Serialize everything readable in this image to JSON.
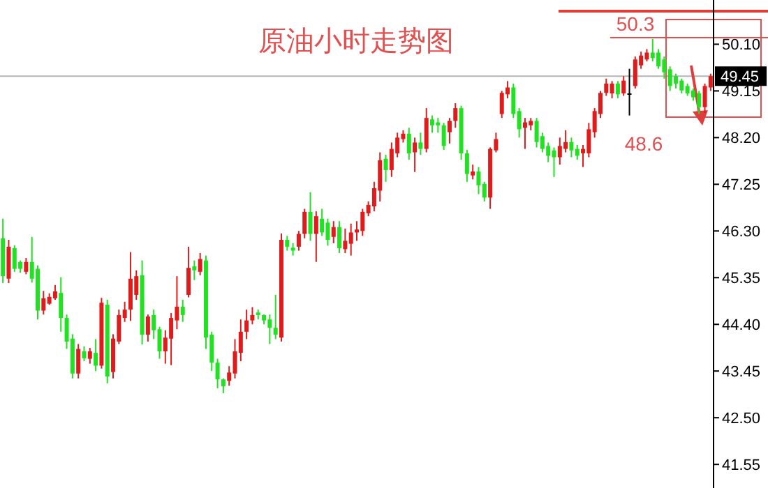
{
  "chart_data": {
    "type": "candlestick",
    "title": "原油小时走势图",
    "categories": [
      null,
      null,
      null,
      null,
      null,
      null,
      null,
      null,
      null,
      null,
      null,
      null,
      null,
      null,
      null,
      null,
      null,
      null,
      null,
      null,
      null,
      null,
      null,
      null,
      null,
      null,
      null,
      null,
      null,
      null,
      null,
      null,
      null,
      null,
      null,
      null,
      null,
      null,
      null,
      null,
      null,
      null,
      null,
      null,
      null,
      null,
      null,
      null,
      null,
      null,
      null,
      null,
      null,
      null,
      null,
      null,
      null,
      null,
      null,
      null,
      null,
      null,
      null,
      null,
      null,
      null,
      null,
      null,
      null,
      null,
      null,
      null,
      null,
      null,
      null,
      null,
      null,
      null,
      null,
      null,
      null,
      null,
      null,
      null,
      null,
      null,
      null,
      null,
      null,
      null,
      null,
      null,
      null,
      null,
      null,
      null,
      null,
      null,
      null,
      null,
      null,
      null,
      null,
      null,
      null,
      null,
      null,
      null,
      null,
      null,
      null,
      null,
      null,
      null,
      null,
      null,
      null,
      null,
      null,
      null,
      null,
      null,
      null
    ],
    "ohlc": [
      [
        46.15,
        46.55,
        45.24,
        45.38
      ],
      [
        45.33,
        46.12,
        45.24,
        45.98
      ],
      [
        45.95,
        46.01,
        45.47,
        45.53
      ],
      [
        45.67,
        45.7,
        45.45,
        45.53
      ],
      [
        45.47,
        45.75,
        45.42,
        45.67
      ],
      [
        45.67,
        46.18,
        45.25,
        45.33
      ],
      [
        45.53,
        45.6,
        44.5,
        44.68
      ],
      [
        44.68,
        45.08,
        44.6,
        44.93
      ],
      [
        44.82,
        45.03,
        44.8,
        44.96
      ],
      [
        44.93,
        45.2,
        44.9,
        45.07
      ],
      [
        45.04,
        45.36,
        44.25,
        44.53
      ],
      [
        44.53,
        44.6,
        43.9,
        44.05
      ],
      [
        44.11,
        44.2,
        43.3,
        43.4
      ],
      [
        43.4,
        44.0,
        43.3,
        43.9
      ],
      [
        43.85,
        43.95,
        43.65,
        43.71
      ],
      [
        43.7,
        43.92,
        43.6,
        43.85
      ],
      [
        43.82,
        44.1,
        43.45,
        43.56
      ],
      [
        43.56,
        44.94,
        43.5,
        44.84
      ],
      [
        44.8,
        44.9,
        43.2,
        43.34
      ],
      [
        43.43,
        44.2,
        43.3,
        44.11
      ],
      [
        44.05,
        44.7,
        44.0,
        44.59
      ],
      [
        44.53,
        44.86,
        44.45,
        44.7
      ],
      [
        44.7,
        45.87,
        44.47,
        45.33
      ],
      [
        45.0,
        45.5,
        44.9,
        45.38
      ],
      [
        45.4,
        45.7,
        43.99,
        44.19
      ],
      [
        44.19,
        44.6,
        44.05,
        44.56
      ],
      [
        44.59,
        44.7,
        44.1,
        44.28
      ],
      [
        44.3,
        44.35,
        43.7,
        43.85
      ],
      [
        43.85,
        44.28,
        43.6,
        44.13
      ],
      [
        44.11,
        44.63,
        43.57,
        44.53
      ],
      [
        44.48,
        45.38,
        44.3,
        44.76
      ],
      [
        44.76,
        44.9,
        44.45,
        44.59
      ],
      [
        45.0,
        45.98,
        44.95,
        45.55
      ],
      [
        45.58,
        45.7,
        45.3,
        45.5
      ],
      [
        45.47,
        45.85,
        45.4,
        45.73
      ],
      [
        45.7,
        45.8,
        43.9,
        44.13
      ],
      [
        44.19,
        44.25,
        43.45,
        43.62
      ],
      [
        43.62,
        43.7,
        43.1,
        43.28
      ],
      [
        43.28,
        43.3,
        43.0,
        43.14
      ],
      [
        43.25,
        43.55,
        43.15,
        43.42
      ],
      [
        43.4,
        44.1,
        43.3,
        43.85
      ],
      [
        43.82,
        44.5,
        43.65,
        44.25
      ],
      [
        44.25,
        44.7,
        44.1,
        44.48
      ],
      [
        44.48,
        44.75,
        44.4,
        44.59
      ],
      [
        44.64,
        44.7,
        44.5,
        44.59
      ],
      [
        44.59,
        44.6,
        44.4,
        44.48
      ],
      [
        44.5,
        44.6,
        44.0,
        44.33
      ],
      [
        44.33,
        45.0,
        44.1,
        44.19
      ],
      [
        44.13,
        46.25,
        44.05,
        46.12
      ],
      [
        46.12,
        46.2,
        45.9,
        45.98
      ],
      [
        45.96,
        46.05,
        45.8,
        45.9
      ],
      [
        45.98,
        46.3,
        45.9,
        46.24
      ],
      [
        46.24,
        46.75,
        46.15,
        46.69
      ],
      [
        46.69,
        47.09,
        46.1,
        46.24
      ],
      [
        46.24,
        46.7,
        45.67,
        46.6
      ],
      [
        46.55,
        46.75,
        46.2,
        46.27
      ],
      [
        46.47,
        46.55,
        46.0,
        46.12
      ],
      [
        46.18,
        46.5,
        46.05,
        46.38
      ],
      [
        46.38,
        46.5,
        45.85,
        45.95
      ],
      [
        45.93,
        46.35,
        45.85,
        46.1
      ],
      [
        46.04,
        46.45,
        45.8,
        46.27
      ],
      [
        46.27,
        46.5,
        46.1,
        46.33
      ],
      [
        46.3,
        46.75,
        46.2,
        46.69
      ],
      [
        46.66,
        46.9,
        46.6,
        46.83
      ],
      [
        46.8,
        47.3,
        46.7,
        47.17
      ],
      [
        47.12,
        47.9,
        46.9,
        47.74
      ],
      [
        47.77,
        47.85,
        47.3,
        47.54
      ],
      [
        47.54,
        48.1,
        47.4,
        47.97
      ],
      [
        47.88,
        48.3,
        47.8,
        48.2
      ],
      [
        48.17,
        48.35,
        48.1,
        48.28
      ],
      [
        48.28,
        48.4,
        47.75,
        47.88
      ],
      [
        47.9,
        48.2,
        47.5,
        48.1
      ],
      [
        48.1,
        48.3,
        47.85,
        47.97
      ],
      [
        47.97,
        48.8,
        47.9,
        48.6
      ],
      [
        48.57,
        48.65,
        48.3,
        48.45
      ],
      [
        48.51,
        48.6,
        48.3,
        48.45
      ],
      [
        48.45,
        48.5,
        47.95,
        48.03
      ],
      [
        48.31,
        48.6,
        48.08,
        48.54
      ],
      [
        48.54,
        48.9,
        48.4,
        48.8
      ],
      [
        48.8,
        48.85,
        47.75,
        47.88
      ],
      [
        47.88,
        47.95,
        47.3,
        47.46
      ],
      [
        47.43,
        47.65,
        47.35,
        47.51
      ],
      [
        47.51,
        47.6,
        47.05,
        47.23
      ],
      [
        47.26,
        47.3,
        46.9,
        46.98
      ],
      [
        46.98,
        48.0,
        46.75,
        47.97
      ],
      [
        47.94,
        48.3,
        47.9,
        48.17
      ],
      [
        48.68,
        49.15,
        48.6,
        49.11
      ],
      [
        49.08,
        49.35,
        49.0,
        49.22
      ],
      [
        49.22,
        49.3,
        48.6,
        48.68
      ],
      [
        48.74,
        48.8,
        48.2,
        48.37
      ],
      [
        48.4,
        48.6,
        47.97,
        48.51
      ],
      [
        48.45,
        48.6,
        48.35,
        48.54
      ],
      [
        48.54,
        48.6,
        48.0,
        48.11
      ],
      [
        48.23,
        48.3,
        47.9,
        47.97
      ],
      [
        48.03,
        48.1,
        47.7,
        47.83
      ],
      [
        47.94,
        48.0,
        47.4,
        47.8
      ],
      [
        47.8,
        48.2,
        47.65,
        48.03
      ],
      [
        47.97,
        48.35,
        47.9,
        48.11
      ],
      [
        48.11,
        48.2,
        47.8,
        47.94
      ],
      [
        47.97,
        48.05,
        47.75,
        47.83
      ],
      [
        47.88,
        48.05,
        47.6,
        47.97
      ],
      [
        47.88,
        48.5,
        47.8,
        48.37
      ],
      [
        48.31,
        48.8,
        48.2,
        48.74
      ],
      [
        48.68,
        49.15,
        48.6,
        49.11
      ],
      [
        49.11,
        49.4,
        49.05,
        49.3
      ],
      [
        49.1,
        49.35,
        49.0,
        49.3
      ],
      [
        49.3,
        49.35,
        49.0,
        49.08
      ],
      [
        49.1,
        49.45,
        49.05,
        49.36
      ],
      [
        49.1,
        49.6,
        48.65,
        49.1
      ],
      [
        49.25,
        49.85,
        49.2,
        49.79
      ],
      [
        49.67,
        49.95,
        49.6,
        49.87
      ],
      [
        49.79,
        50.0,
        49.75,
        49.93
      ],
      [
        49.93,
        50.21,
        49.75,
        49.82
      ],
      [
        49.93,
        50.0,
        49.6,
        49.65
      ],
      [
        49.79,
        49.85,
        49.4,
        49.53
      ],
      [
        49.59,
        49.65,
        49.15,
        49.25
      ],
      [
        49.45,
        49.5,
        49.2,
        49.3
      ],
      [
        49.36,
        49.4,
        49.1,
        49.16
      ],
      [
        49.25,
        49.3,
        49.05,
        49.1
      ],
      [
        49.16,
        49.2,
        48.95,
        49.02
      ],
      [
        49.1,
        49.15,
        48.68,
        48.82
      ],
      [
        48.82,
        49.3,
        48.7,
        49.25
      ],
      [
        49.22,
        49.5,
        49.15,
        49.45
      ]
    ],
    "colors": [
      "#22e022",
      "#e01b1b",
      "#22e022",
      "#22e022",
      "#e01b1b",
      "#22e022",
      "#22e022",
      "#e01b1b",
      "#e01b1b",
      "#e01b1b",
      "#22e022",
      "#22e022",
      "#22e022",
      "#e01b1b",
      "#22e022",
      "#e01b1b",
      "#22e022",
      "#e01b1b",
      "#22e022",
      "#e01b1b",
      "#e01b1b",
      "#e01b1b",
      "#e01b1b",
      "#e01b1b",
      "#22e022",
      "#e01b1b",
      "#22e022",
      "#22e022",
      "#e01b1b",
      "#e01b1b",
      "#e01b1b",
      "#22e022",
      "#e01b1b",
      "#22e022",
      "#e01b1b",
      "#22e022",
      "#22e022",
      "#22e022",
      "#22e022",
      "#e01b1b",
      "#e01b1b",
      "#e01b1b",
      "#e01b1b",
      "#e01b1b",
      "#22e022",
      "#22e022",
      "#22e022",
      "#22e022",
      "#e01b1b",
      "#22e022",
      "#22e022",
      "#e01b1b",
      "#e01b1b",
      "#22e022",
      "#e01b1b",
      "#22e022",
      "#22e022",
      "#e01b1b",
      "#22e022",
      "#e01b1b",
      "#e01b1b",
      "#e01b1b",
      "#e01b1b",
      "#e01b1b",
      "#e01b1b",
      "#e01b1b",
      "#22e022",
      "#e01b1b",
      "#e01b1b",
      "#e01b1b",
      "#22e022",
      "#e01b1b",
      "#22e022",
      "#e01b1b",
      "#22e022",
      "#22e022",
      "#22e022",
      "#e01b1b",
      "#e01b1b",
      "#22e022",
      "#22e022",
      "#e01b1b",
      "#22e022",
      "#22e022",
      "#e01b1b",
      "#e01b1b",
      "#e01b1b",
      "#e01b1b",
      "#22e022",
      "#22e022",
      "#e01b1b",
      "#e01b1b",
      "#22e022",
      "#22e022",
      "#22e022",
      "#22e022",
      "#e01b1b",
      "#e01b1b",
      "#22e022",
      "#22e022",
      "#e01b1b",
      "#e01b1b",
      "#e01b1b",
      "#e01b1b",
      "#e01b1b",
      "#e01b1b",
      "#22e022",
      "#e01b1b",
      "#000000",
      "#e01b1b",
      "#e01b1b",
      "#e01b1b",
      "#22e022",
      "#22e022",
      "#22e022",
      "#22e022",
      "#22e022",
      "#22e022",
      "#22e022",
      "#22e022",
      "#22e022",
      "#e01b1b",
      "#e01b1b"
    ],
    "ylim": [
      41.07,
      51.0
    ],
    "yticks": [
      {
        "value": 50.1,
        "label": "50.10"
      },
      {
        "value": 49.15,
        "label": "49.15"
      },
      {
        "value": 48.2,
        "label": "48.20"
      },
      {
        "value": 47.25,
        "label": "47.25"
      },
      {
        "value": 46.3,
        "label": "46.30"
      },
      {
        "value": 45.35,
        "label": "45.35"
      },
      {
        "value": 44.4,
        "label": "44.40"
      },
      {
        "value": 43.45,
        "label": "43.45"
      },
      {
        "value": 42.5,
        "label": "42.50"
      },
      {
        "value": 41.55,
        "label": "41.55"
      }
    ],
    "ref_lines": [
      {
        "axis": "y",
        "value": 49.45,
        "label": "49.45",
        "color": "#b4b4b4"
      }
    ],
    "annotations": [
      "50.3",
      "48.6"
    ],
    "tick_labels": "y"
  }
}
